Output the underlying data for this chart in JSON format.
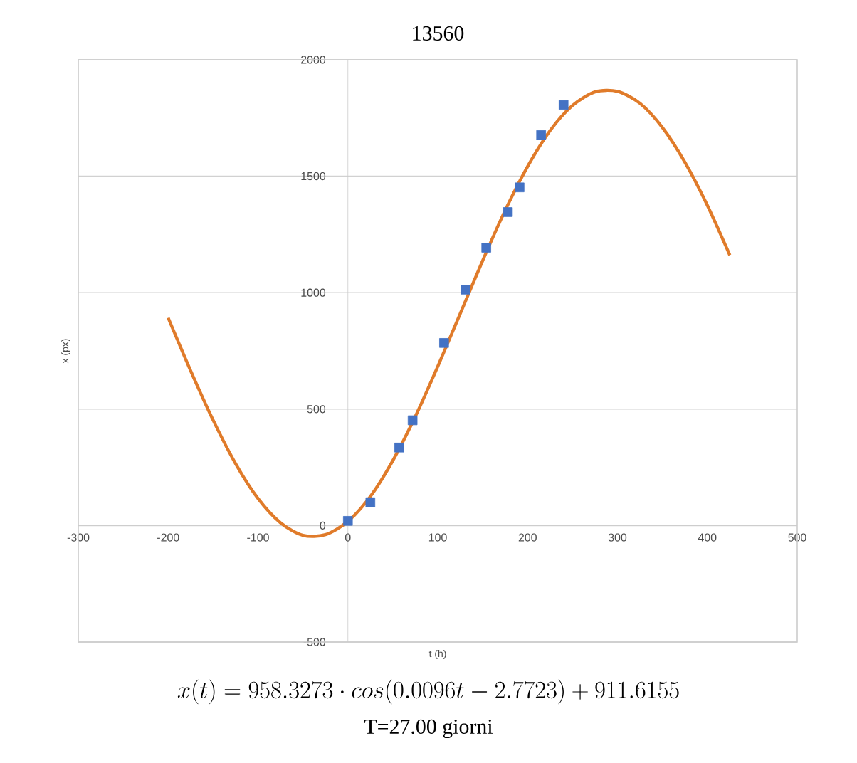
{
  "chart_data": {
    "type": "scatter",
    "title": "13560",
    "xlabel": "t (h)",
    "ylabel": "x (px)",
    "annotations": [
      "x(t) = 958.3273 \\cdot cos(0.0096t - 2.7723) + 911.6155",
      "T=27.00 giorni"
    ],
    "xlim": [
      -300,
      500
    ],
    "ylim": [
      -500,
      2000
    ],
    "xticks": [
      -300,
      -200,
      -100,
      0,
      100,
      200,
      300,
      400,
      500
    ],
    "yticks": [
      -500,
      0,
      500,
      1000,
      1500,
      2000
    ],
    "grid": "y",
    "series": [
      {
        "type": "scatter",
        "marker": "square",
        "color": "#4472c4",
        "x": [
          0,
          25,
          57,
          72,
          107,
          131,
          154,
          178,
          191,
          215,
          240
        ],
        "values": [
          20,
          100,
          335,
          452,
          784,
          1013,
          1193,
          1346,
          1452,
          1677,
          1806
        ]
      },
      {
        "type": "line",
        "marker": "none",
        "color": "#e07b2a",
        "x": [
          -200,
          -175,
          -150,
          -125,
          -100,
          -75,
          -50,
          -25,
          0,
          25,
          50,
          75,
          100,
          125,
          150,
          175,
          200,
          225,
          250,
          275,
          300,
          325,
          350,
          375,
          400,
          425
        ],
        "values": [
          892,
          665,
          453,
          266,
          116,
          12,
          -42,
          -39,
          18,
          125,
          279,
          468,
          683,
          910,
          1138,
          1353,
          1542,
          1696,
          1804,
          1862,
          1864,
          1813,
          1709,
          1560,
          1375,
          1161
        ]
      }
    ]
  }
}
